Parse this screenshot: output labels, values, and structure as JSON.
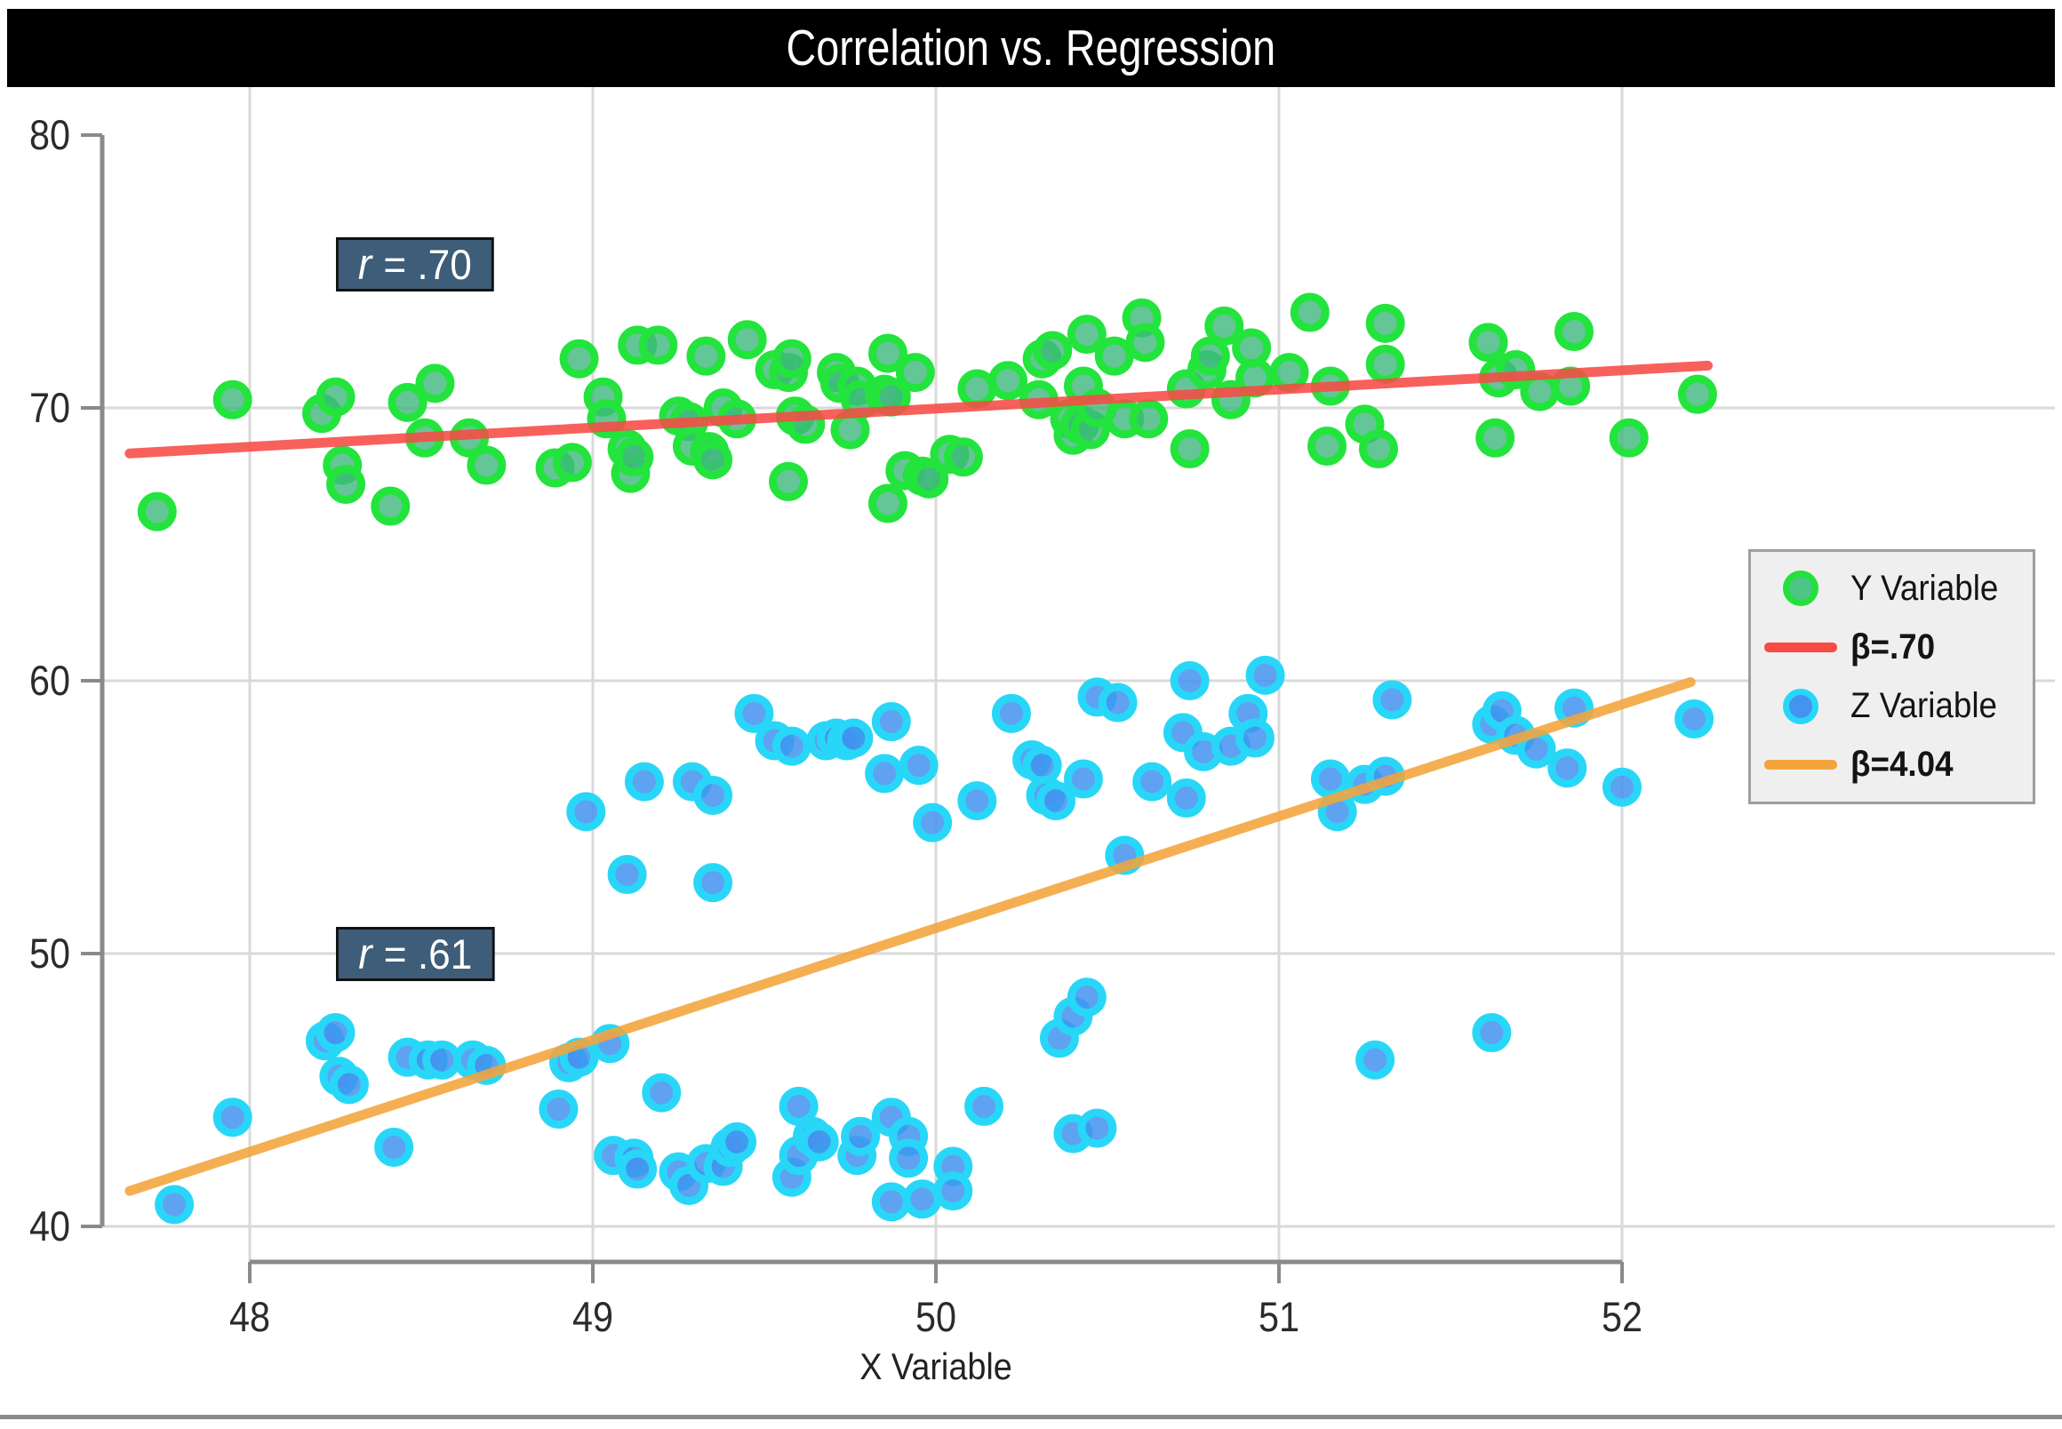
{
  "title": "Correlation vs. Regression",
  "colors": {
    "title_bg": "#000000",
    "title_fg": "#ffffff",
    "grid": "#d9d9d9",
    "axis": "#8a8a8a",
    "tick_label": "#2b2b2b",
    "green_fill": "#3db87d",
    "green_edge": "#23e43c",
    "blue_fill": "#4292ee",
    "blue_edge": "#28d7f8",
    "red_line": "#f84b46",
    "orange_line": "#f4a43c",
    "anno_bg": "#3d5d78",
    "legend_bg": "#efefef",
    "bottom_rule": "#8c8c8c"
  },
  "legend": {
    "items": [
      {
        "label": "Y Variable",
        "swatch": "dot",
        "fill": "#4cc585",
        "edge": "#24e03c"
      },
      {
        "label": "β=.70",
        "swatch": "line",
        "color": "#f84b46"
      },
      {
        "label": "Z Variable",
        "swatch": "dot",
        "fill": "#4593ef",
        "edge": "#27d7f8"
      },
      {
        "label": "β=4.04",
        "swatch": "line",
        "color": "#f4a43c"
      }
    ]
  },
  "chart_data": {
    "type": "scatter",
    "title": "Correlation vs. Regression",
    "xlabel": "X Variable",
    "ylabel": "",
    "xlim": [
      47.55,
      52.35
    ],
    "ylim": [
      38.8,
      81.8
    ],
    "xticks": [
      48,
      49,
      50,
      51,
      52
    ],
    "yticks": [
      40,
      50,
      60,
      70,
      80
    ],
    "x_gridlines": [
      48,
      49,
      50,
      51,
      52
    ],
    "y_gridlines": [
      40,
      50,
      60,
      70
    ],
    "grid": true,
    "legend_position": "center right",
    "annotations": [
      {
        "r": "r",
        "text": "= .70",
        "x": 48.25,
        "y": 75.0
      },
      {
        "r": "r",
        "text": "= .61",
        "x": 48.25,
        "y": 50.0
      }
    ],
    "series": [
      {
        "name": "Y Variable",
        "marker": "circle",
        "points": [
          [
            47.73,
            66.2
          ],
          [
            47.95,
            70.3
          ],
          [
            48.21,
            69.8
          ],
          [
            48.25,
            70.4
          ],
          [
            48.27,
            67.9
          ],
          [
            48.28,
            67.2
          ],
          [
            48.41,
            66.4
          ],
          [
            48.46,
            70.2
          ],
          [
            48.51,
            68.9
          ],
          [
            48.54,
            70.9
          ],
          [
            48.64,
            68.9
          ],
          [
            48.69,
            67.9
          ],
          [
            48.89,
            67.8
          ],
          [
            48.94,
            68.0
          ],
          [
            48.96,
            71.8
          ],
          [
            49.03,
            70.4
          ],
          [
            49.04,
            69.6
          ],
          [
            49.1,
            68.5
          ],
          [
            49.11,
            67.6
          ],
          [
            49.12,
            68.2
          ],
          [
            49.13,
            72.3
          ],
          [
            49.19,
            72.3
          ],
          [
            49.25,
            69.7
          ],
          [
            49.28,
            69.5
          ],
          [
            49.29,
            68.6
          ],
          [
            49.33,
            71.9
          ],
          [
            49.34,
            68.4
          ],
          [
            49.35,
            68.1
          ],
          [
            49.38,
            70.0
          ],
          [
            49.42,
            69.6
          ],
          [
            49.45,
            72.5
          ],
          [
            49.53,
            71.4
          ],
          [
            49.57,
            71.3
          ],
          [
            49.57,
            67.3
          ],
          [
            49.58,
            71.8
          ],
          [
            49.59,
            69.7
          ],
          [
            49.62,
            69.4
          ],
          [
            49.71,
            71.3
          ],
          [
            49.72,
            70.9
          ],
          [
            49.75,
            69.2
          ],
          [
            49.77,
            70.8
          ],
          [
            49.78,
            70.3
          ],
          [
            49.85,
            70.5
          ],
          [
            49.86,
            72.0
          ],
          [
            49.86,
            66.5
          ],
          [
            49.87,
            70.4
          ],
          [
            49.91,
            67.7
          ],
          [
            49.94,
            71.3
          ],
          [
            49.96,
            67.5
          ],
          [
            49.98,
            67.4
          ],
          [
            50.04,
            68.3
          ],
          [
            50.08,
            68.2
          ],
          [
            50.12,
            70.7
          ],
          [
            50.21,
            71.0
          ],
          [
            50.3,
            70.3
          ],
          [
            50.31,
            71.8
          ],
          [
            50.34,
            72.1
          ],
          [
            50.39,
            69.6
          ],
          [
            50.4,
            69.0
          ],
          [
            50.42,
            69.4
          ],
          [
            50.43,
            70.8
          ],
          [
            50.44,
            72.7
          ],
          [
            50.45,
            69.2
          ],
          [
            50.47,
            70.0
          ],
          [
            50.52,
            71.9
          ],
          [
            50.55,
            69.6
          ],
          [
            50.6,
            73.3
          ],
          [
            50.61,
            72.4
          ],
          [
            50.62,
            69.6
          ],
          [
            50.73,
            70.7
          ],
          [
            50.74,
            68.5
          ],
          [
            50.79,
            71.4
          ],
          [
            50.8,
            71.9
          ],
          [
            50.84,
            73.0
          ],
          [
            50.86,
            70.3
          ],
          [
            50.92,
            72.2
          ],
          [
            50.93,
            71.1
          ],
          [
            51.03,
            71.3
          ],
          [
            51.09,
            73.5
          ],
          [
            51.14,
            68.6
          ],
          [
            51.15,
            70.8
          ],
          [
            51.25,
            69.4
          ],
          [
            51.29,
            68.5
          ],
          [
            51.31,
            73.1
          ],
          [
            51.31,
            71.6
          ],
          [
            51.61,
            72.4
          ],
          [
            51.63,
            68.9
          ],
          [
            51.64,
            71.1
          ],
          [
            51.69,
            71.4
          ],
          [
            51.76,
            70.6
          ],
          [
            51.85,
            70.8
          ],
          [
            51.86,
            72.8
          ],
          [
            52.02,
            68.9
          ],
          [
            52.22,
            70.5
          ]
        ]
      },
      {
        "name": "Z Variable",
        "marker": "circle",
        "points": [
          [
            47.78,
            40.8
          ],
          [
            47.95,
            44.0
          ],
          [
            48.22,
            46.8
          ],
          [
            48.25,
            47.1
          ],
          [
            48.26,
            45.5
          ],
          [
            48.29,
            45.2
          ],
          [
            48.42,
            42.9
          ],
          [
            48.46,
            46.2
          ],
          [
            48.52,
            46.1
          ],
          [
            48.56,
            46.1
          ],
          [
            48.65,
            46.1
          ],
          [
            48.69,
            45.9
          ],
          [
            48.9,
            44.3
          ],
          [
            48.93,
            46.0
          ],
          [
            48.96,
            46.2
          ],
          [
            48.98,
            55.2
          ],
          [
            49.05,
            46.7
          ],
          [
            49.06,
            42.6
          ],
          [
            49.1,
            52.9
          ],
          [
            49.12,
            42.5
          ],
          [
            49.13,
            42.1
          ],
          [
            49.15,
            56.3
          ],
          [
            49.2,
            44.9
          ],
          [
            49.25,
            42.0
          ],
          [
            49.28,
            41.5
          ],
          [
            49.29,
            56.3
          ],
          [
            49.33,
            42.3
          ],
          [
            49.35,
            55.8
          ],
          [
            49.35,
            52.6
          ],
          [
            49.38,
            42.2
          ],
          [
            49.4,
            42.9
          ],
          [
            49.42,
            43.1
          ],
          [
            49.47,
            58.8
          ],
          [
            49.53,
            57.8
          ],
          [
            49.58,
            57.6
          ],
          [
            49.58,
            41.8
          ],
          [
            49.6,
            44.4
          ],
          [
            49.6,
            42.6
          ],
          [
            49.64,
            43.3
          ],
          [
            49.66,
            43.1
          ],
          [
            49.68,
            57.8
          ],
          [
            49.71,
            57.9
          ],
          [
            49.74,
            57.8
          ],
          [
            49.76,
            57.9
          ],
          [
            49.77,
            42.6
          ],
          [
            49.78,
            43.3
          ],
          [
            49.85,
            56.6
          ],
          [
            49.87,
            58.5
          ],
          [
            49.87,
            44.0
          ],
          [
            49.87,
            40.9
          ],
          [
            49.92,
            43.3
          ],
          [
            49.92,
            42.5
          ],
          [
            49.95,
            56.9
          ],
          [
            49.96,
            41.0
          ],
          [
            49.99,
            54.8
          ],
          [
            50.05,
            42.2
          ],
          [
            50.05,
            41.3
          ],
          [
            50.12,
            55.6
          ],
          [
            50.14,
            44.4
          ],
          [
            50.22,
            58.8
          ],
          [
            50.28,
            57.1
          ],
          [
            50.31,
            56.9
          ],
          [
            50.32,
            55.8
          ],
          [
            50.35,
            55.6
          ],
          [
            50.36,
            46.9
          ],
          [
            50.4,
            47.7
          ],
          [
            50.4,
            43.4
          ],
          [
            50.43,
            56.4
          ],
          [
            50.44,
            48.4
          ],
          [
            50.47,
            43.6
          ],
          [
            50.47,
            59.4
          ],
          [
            50.53,
            59.2
          ],
          [
            50.55,
            53.6
          ],
          [
            50.63,
            56.3
          ],
          [
            50.72,
            58.1
          ],
          [
            50.73,
            55.7
          ],
          [
            50.74,
            60.0
          ],
          [
            50.78,
            57.4
          ],
          [
            50.86,
            57.6
          ],
          [
            50.91,
            58.8
          ],
          [
            50.93,
            57.9
          ],
          [
            50.96,
            60.2
          ],
          [
            51.15,
            56.4
          ],
          [
            51.17,
            55.2
          ],
          [
            51.25,
            56.2
          ],
          [
            51.28,
            46.1
          ],
          [
            51.31,
            56.5
          ],
          [
            51.33,
            59.3
          ],
          [
            51.62,
            58.4
          ],
          [
            51.62,
            47.1
          ],
          [
            51.65,
            58.9
          ],
          [
            51.69,
            58.0
          ],
          [
            51.75,
            57.5
          ],
          [
            51.84,
            56.8
          ],
          [
            51.86,
            59.0
          ],
          [
            52.0,
            56.1
          ],
          [
            52.21,
            58.6
          ]
        ]
      }
    ],
    "regression_lines": [
      {
        "name": "β=.70",
        "slope_label": ".70",
        "x1": 47.65,
        "y1": 68.33,
        "x2": 52.25,
        "y2": 71.55
      },
      {
        "name": "β=4.04",
        "slope_label": "4.04",
        "x1": 47.65,
        "y1": 41.3,
        "x2": 52.2,
        "y2": 59.95
      }
    ]
  }
}
